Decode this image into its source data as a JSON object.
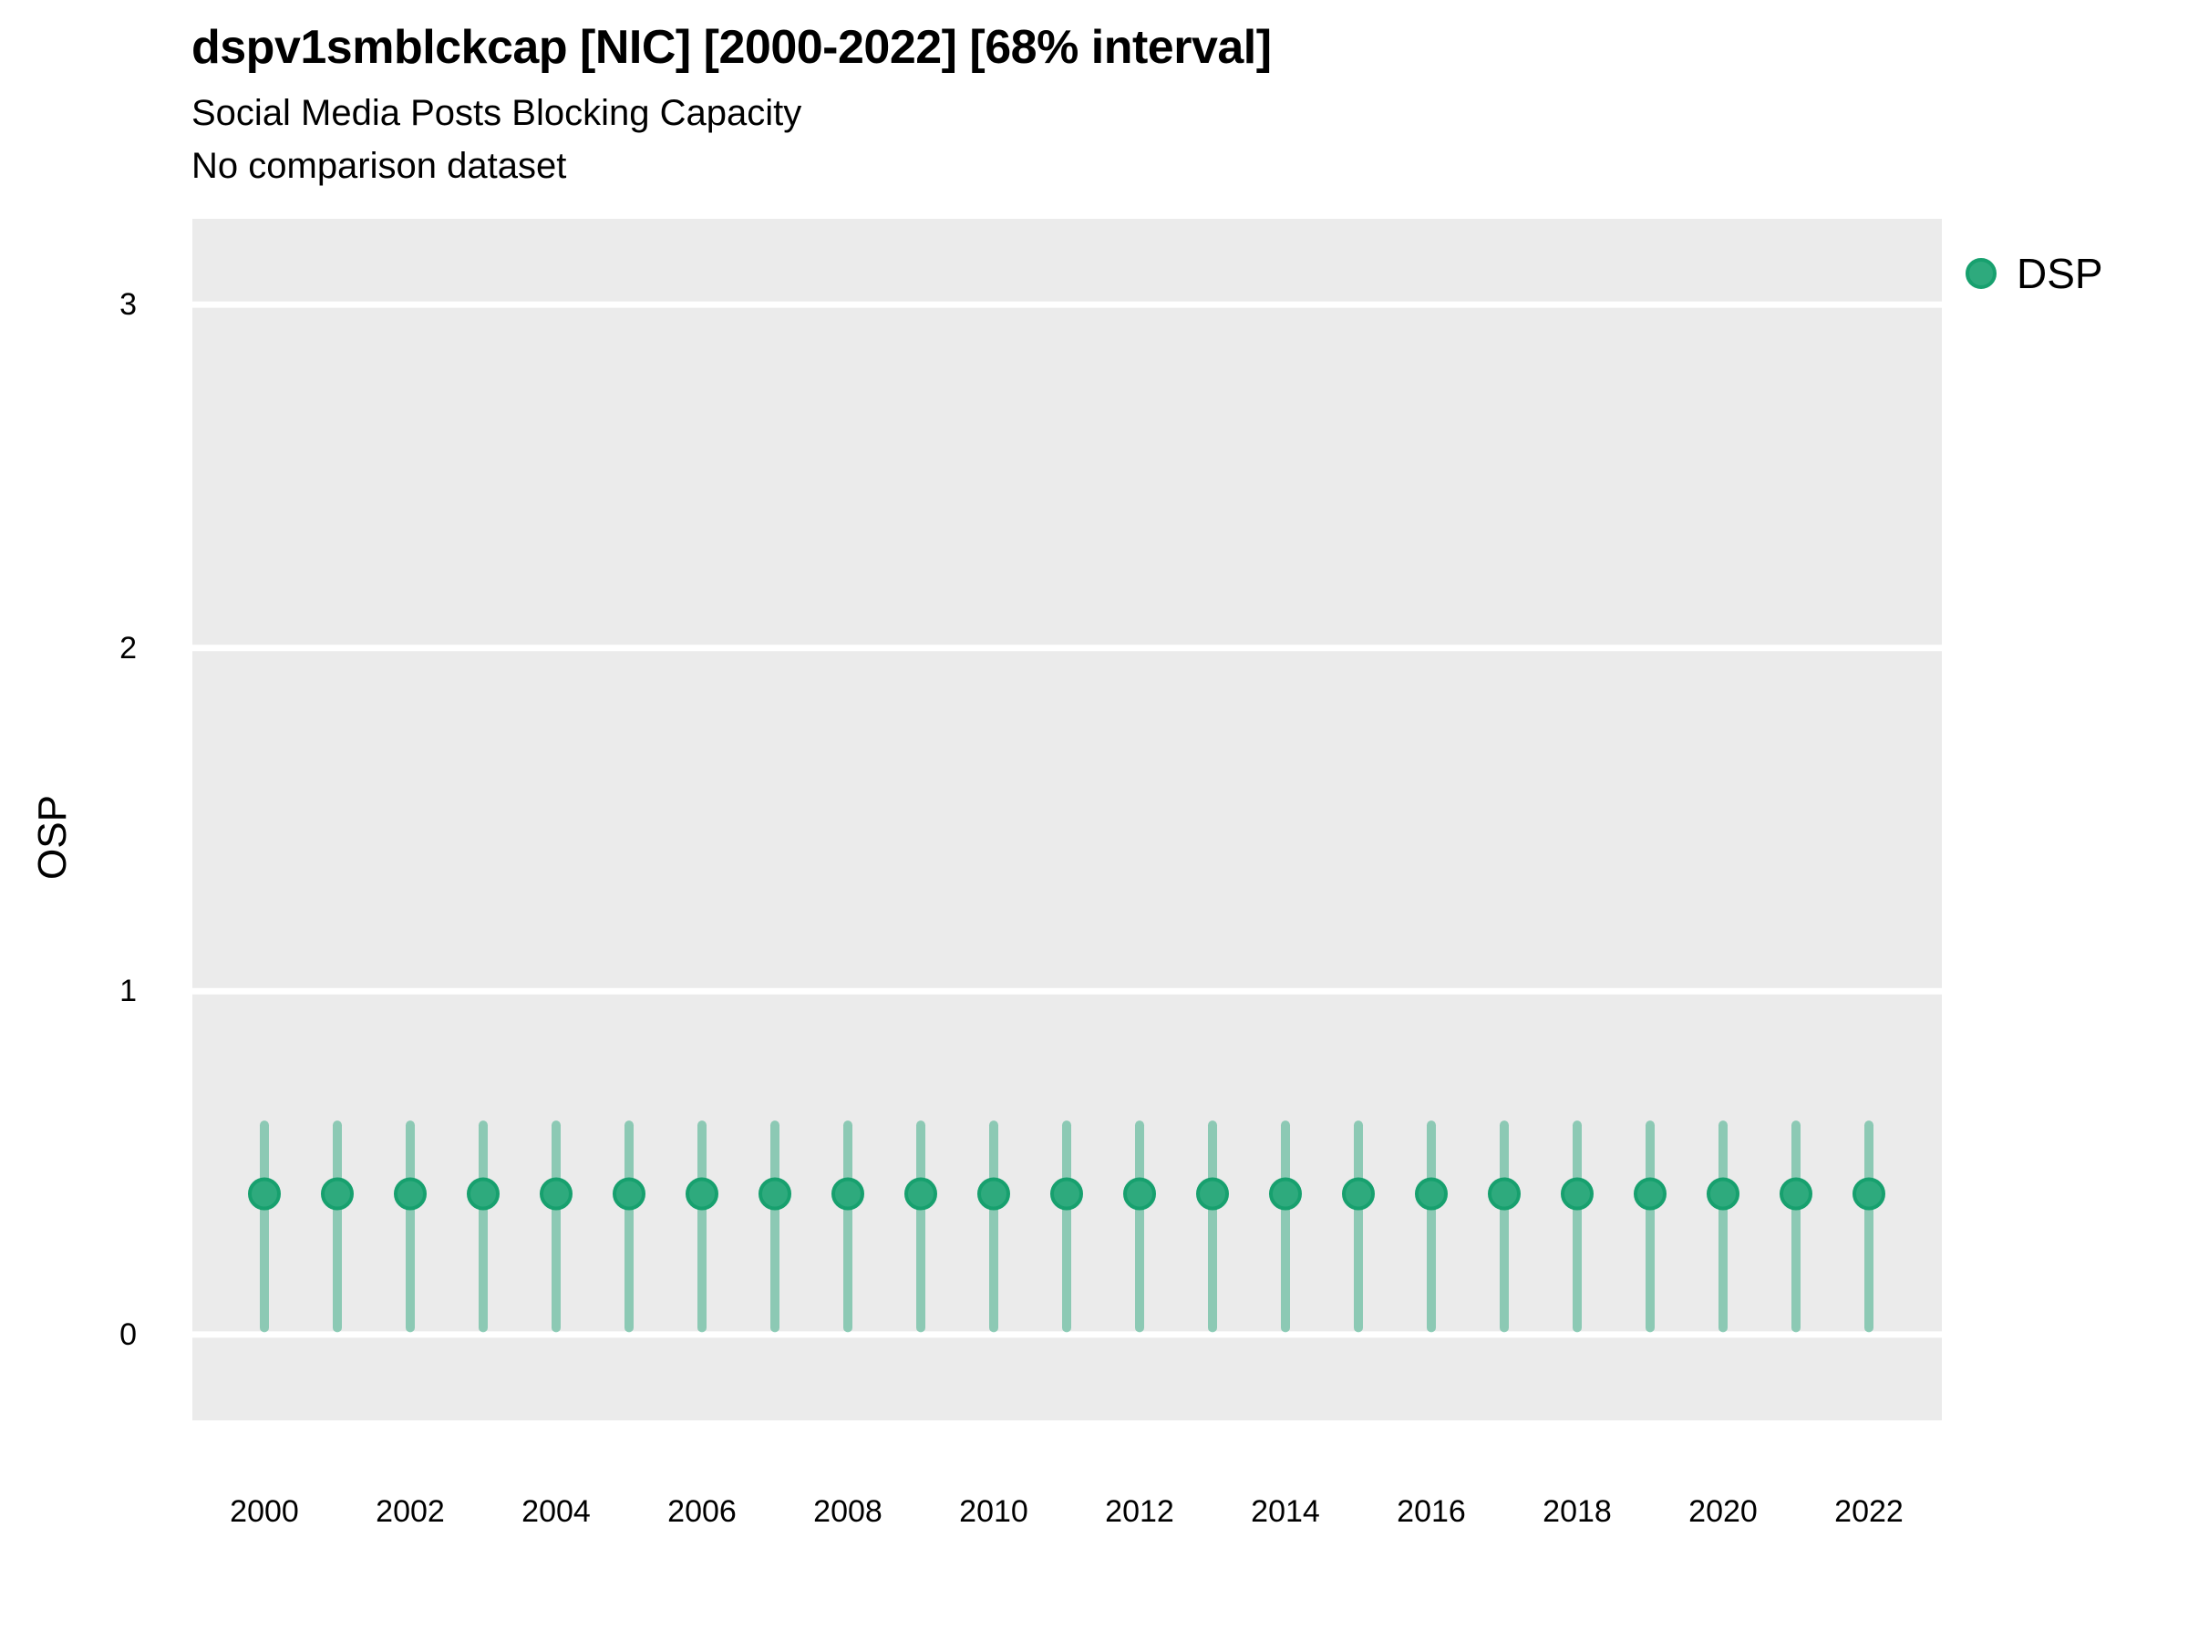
{
  "title": "dspv1smblckcap [NIC] [2000-2022] [68% interval]",
  "subtitle": "Social Media Posts Blocking Capacity",
  "comparison_note": "No comparison dataset",
  "axis": {
    "y_label": "OSP",
    "y_ticks": [
      0,
      1,
      2,
      3
    ],
    "x_ticks": [
      2000,
      2002,
      2004,
      2006,
      2008,
      2010,
      2012,
      2014,
      2016,
      2018,
      2020,
      2022
    ]
  },
  "legend": {
    "label": "DSP",
    "marker_color": "#2EAA7D",
    "marker_stroke": "#17A06E"
  },
  "colors": {
    "panel_background": "#ebebeb",
    "gridline": "#ffffff",
    "point_fill": "#2EAA7D",
    "point_stroke": "#17A06E",
    "interval_line": "rgba(45,168,125,0.5)",
    "text": "#000000"
  },
  "chart_data": {
    "type": "scatter",
    "title": "dspv1smblckcap [NIC] [2000-2022] [68% interval]",
    "subtitle": "Social Media Posts Blocking Capacity",
    "note": "No comparison dataset",
    "interval": "68%",
    "xlabel": "",
    "ylabel": "OSP",
    "ylim": [
      -0.25,
      3.25
    ],
    "yticks": [
      0,
      1,
      2,
      3
    ],
    "xticks": [
      2000,
      2002,
      2004,
      2006,
      2008,
      2010,
      2012,
      2014,
      2016,
      2018,
      2020,
      2022
    ],
    "grid": "horizontal-major-white",
    "legend_position": "right-top",
    "x": [
      2000,
      2001,
      2002,
      2003,
      2004,
      2005,
      2006,
      2007,
      2008,
      2009,
      2010,
      2011,
      2012,
      2013,
      2014,
      2015,
      2016,
      2017,
      2018,
      2019,
      2020,
      2021,
      2022
    ],
    "series": [
      {
        "name": "DSP",
        "values": [
          0.41,
          0.41,
          0.41,
          0.41,
          0.41,
          0.41,
          0.41,
          0.41,
          0.41,
          0.41,
          0.41,
          0.41,
          0.41,
          0.41,
          0.41,
          0.41,
          0.41,
          0.41,
          0.41,
          0.41,
          0.41,
          0.41,
          0.41
        ],
        "interval_low": [
          0.02,
          0.02,
          0.02,
          0.02,
          0.02,
          0.02,
          0.02,
          0.02,
          0.02,
          0.02,
          0.02,
          0.02,
          0.02,
          0.02,
          0.02,
          0.02,
          0.02,
          0.02,
          0.02,
          0.02,
          0.02,
          0.02,
          0.02
        ],
        "interval_high": [
          0.61,
          0.61,
          0.61,
          0.61,
          0.61,
          0.61,
          0.61,
          0.61,
          0.61,
          0.61,
          0.61,
          0.61,
          0.61,
          0.61,
          0.61,
          0.61,
          0.61,
          0.61,
          0.61,
          0.61,
          0.61,
          0.61,
          0.61
        ]
      }
    ]
  }
}
